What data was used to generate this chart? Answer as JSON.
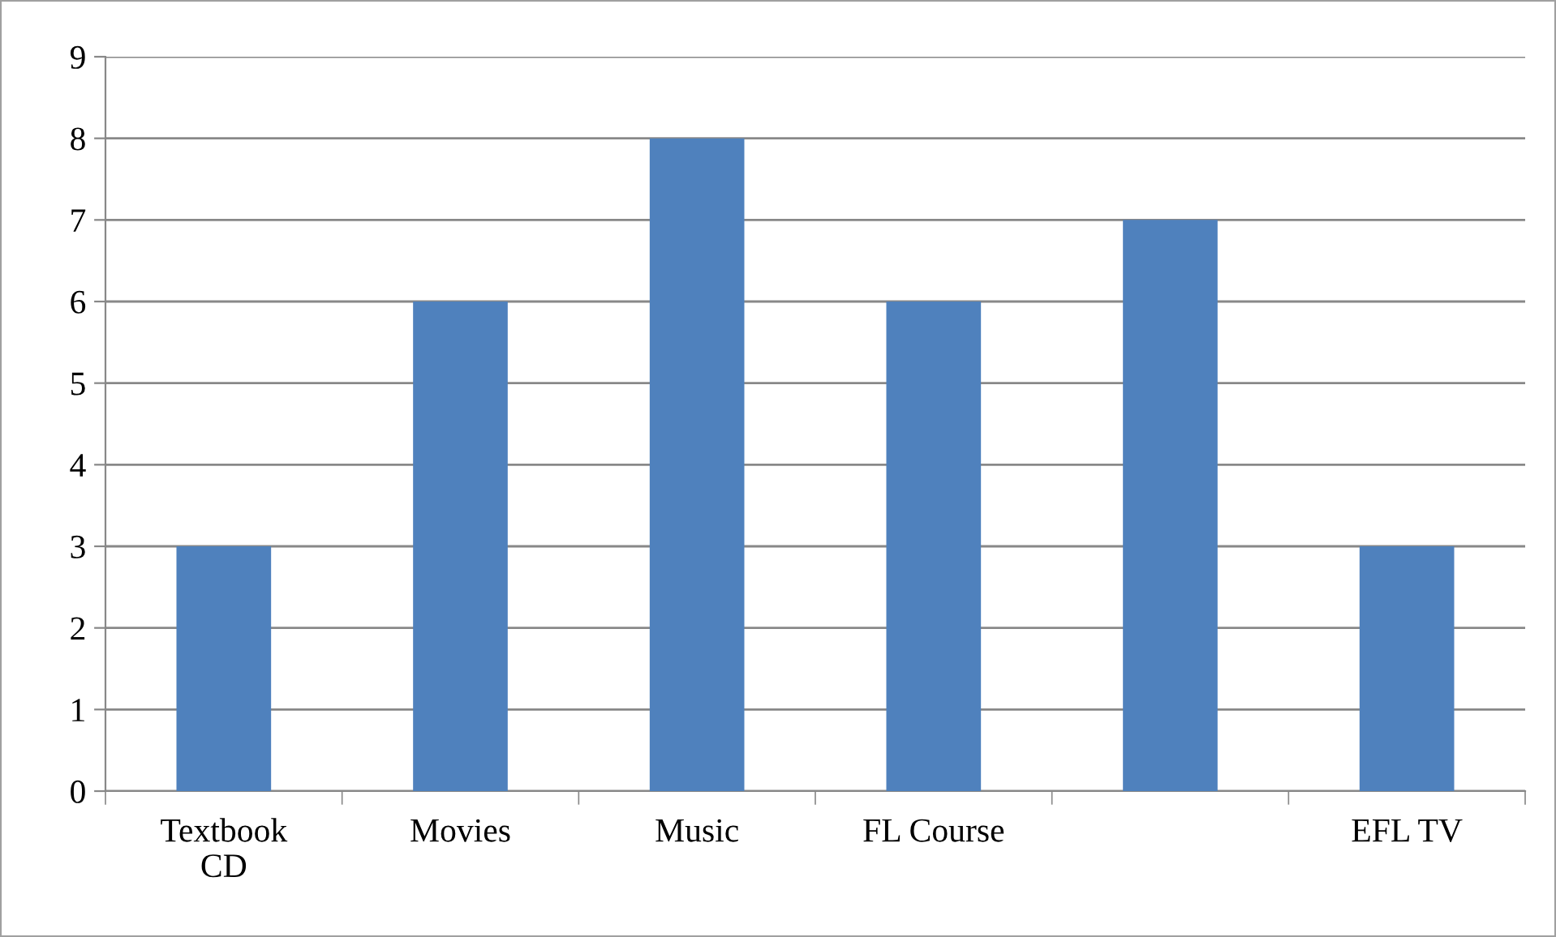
{
  "chart_data": {
    "type": "bar",
    "categories": [
      "Textbook\nCD",
      "Movies",
      "Music",
      "FL Course",
      null,
      "EFL TV"
    ],
    "values": [
      3,
      6,
      8,
      6,
      7,
      3
    ],
    "color": "#4f81bd",
    "ylim": [
      0,
      9
    ],
    "yticks": [
      0,
      1,
      2,
      3,
      4,
      5,
      6,
      7,
      8,
      9
    ],
    "grid": "y"
  }
}
